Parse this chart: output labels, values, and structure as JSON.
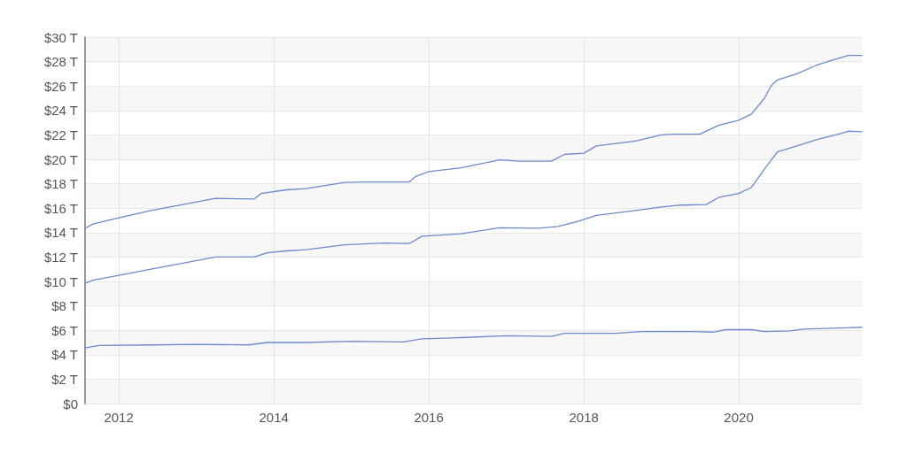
{
  "chart_data": {
    "type": "line",
    "xlim": [
      "2011-07-26",
      "2021-08-03"
    ],
    "ylim": [
      0,
      30
    ],
    "xticks": [
      "2012",
      "2014",
      "2016",
      "2018",
      "2020"
    ],
    "yticks": [
      {
        "value": 0,
        "label": "$0"
      },
      {
        "value": 2,
        "label": "$2 T"
      },
      {
        "value": 4,
        "label": "$4 T"
      },
      {
        "value": 6,
        "label": "$6 T"
      },
      {
        "value": 8,
        "label": "$8 T"
      },
      {
        "value": 10,
        "label": "$10 T"
      },
      {
        "value": 12,
        "label": "$12 T"
      },
      {
        "value": 14,
        "label": "$14 T"
      },
      {
        "value": 16,
        "label": "$16 T"
      },
      {
        "value": 18,
        "label": "$18 T"
      },
      {
        "value": 20,
        "label": "$20 T"
      },
      {
        "value": 22,
        "label": "$22 T"
      },
      {
        "value": 24,
        "label": "$24 T"
      },
      {
        "value": 26,
        "label": "$26 T"
      },
      {
        "value": 28,
        "label": "$28 T"
      },
      {
        "value": 30,
        "label": "$30 T"
      }
    ],
    "grid": true,
    "marker": "none",
    "line_style": "solid",
    "series": [
      {
        "color": "#6b8acb",
        "x": [
          "2011-07-26",
          "2011-09",
          "2012-01",
          "2012-06",
          "2012-12",
          "2013-04",
          "2013-10",
          "2013-11",
          "2014-03",
          "2014-06",
          "2014-12",
          "2015-03",
          "2015-10",
          "2015-11",
          "2016-01",
          "2016-06",
          "2016-12",
          "2017-03",
          "2017-08",
          "2017-10",
          "2018-01",
          "2018-03",
          "2018-09",
          "2019-01",
          "2019-03",
          "2019-07",
          "2019-10",
          "2020-01",
          "2020-03",
          "2020-05",
          "2020-06",
          "2020-07",
          "2020-10",
          "2021-01",
          "2021-04",
          "2021-06",
          "2021-08-03"
        ],
        "values": [
          14.35,
          14.7,
          15.2,
          15.8,
          16.4,
          16.8,
          16.75,
          17.2,
          17.5,
          17.6,
          18.1,
          18.15,
          18.15,
          18.6,
          19.0,
          19.3,
          19.95,
          19.85,
          19.85,
          20.4,
          20.5,
          21.1,
          21.5,
          22.0,
          22.05,
          22.05,
          22.8,
          23.2,
          23.7,
          25.0,
          26.0,
          26.5,
          27.0,
          27.7,
          28.2,
          28.5,
          28.5
        ]
      },
      {
        "color": "#6b8acb",
        "x": [
          "2011-07-26",
          "2011-09",
          "2012-01",
          "2012-06",
          "2012-12",
          "2013-04",
          "2013-10",
          "2013-12",
          "2014-03",
          "2014-06",
          "2014-12",
          "2015-06",
          "2015-10",
          "2015-12",
          "2016-03",
          "2016-06",
          "2016-12",
          "2017-06",
          "2017-09",
          "2017-12",
          "2018-03",
          "2018-09",
          "2019-01",
          "2019-04",
          "2019-08",
          "2019-10",
          "2020-01",
          "2020-03",
          "2020-05",
          "2020-07",
          "2020-10",
          "2021-01",
          "2021-04",
          "2021-06",
          "2021-08-03"
        ],
        "values": [
          9.85,
          10.1,
          10.5,
          11.0,
          11.6,
          12.0,
          12.0,
          12.35,
          12.5,
          12.6,
          13.0,
          13.15,
          13.1,
          13.7,
          13.8,
          13.9,
          14.4,
          14.35,
          14.5,
          14.9,
          15.4,
          15.8,
          16.1,
          16.25,
          16.3,
          16.9,
          17.2,
          17.7,
          19.2,
          20.6,
          21.1,
          21.6,
          22.0,
          22.3,
          22.25
        ]
      },
      {
        "color": "#6b8acb",
        "x": [
          "2011-07-26",
          "2011-10",
          "2012-06",
          "2013-01",
          "2013-09",
          "2013-12",
          "2014-06",
          "2015-01",
          "2015-09",
          "2015-12",
          "2016-06",
          "2017-01",
          "2017-08",
          "2017-10",
          "2018-06",
          "2018-10",
          "2019-06",
          "2019-09",
          "2019-11",
          "2020-03",
          "2020-05",
          "2020-09",
          "2020-11",
          "2021-06",
          "2021-08-03"
        ],
        "values": [
          4.55,
          4.75,
          4.8,
          4.85,
          4.8,
          5.0,
          5.0,
          5.1,
          5.05,
          5.3,
          5.4,
          5.55,
          5.5,
          5.75,
          5.75,
          5.9,
          5.9,
          5.85,
          6.05,
          6.05,
          5.9,
          5.95,
          6.1,
          6.2,
          6.25
        ]
      }
    ]
  }
}
